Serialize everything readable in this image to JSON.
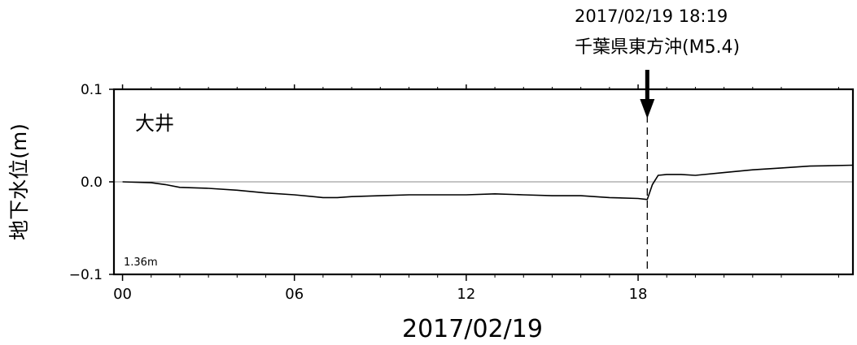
{
  "chart_data": {
    "type": "line",
    "ylabel": "地下水位(m)",
    "xlabel": "2017/02/19",
    "station_label": "大井",
    "baseline_note": "1.36m",
    "x_unit": "hours since 2017/02/19 00:00",
    "xlim": [
      -0.3,
      25.5
    ],
    "ylim": [
      -0.1,
      0.1
    ],
    "x_ticks": [
      {
        "value": 0,
        "label": "00"
      },
      {
        "value": 6,
        "label": "06"
      },
      {
        "value": 12,
        "label": "12"
      },
      {
        "value": 18,
        "label": "18"
      }
    ],
    "y_ticks": [
      {
        "value": 0.1,
        "label": "0.1"
      },
      {
        "value": 0.0,
        "label": "0.0"
      },
      {
        "value": -0.1,
        "label": "−0.1"
      }
    ],
    "series": [
      {
        "x": [
          0,
          1,
          1.5,
          2,
          3,
          4,
          5,
          6,
          7,
          7.5,
          8,
          9,
          10,
          11,
          12,
          13,
          14,
          15,
          16,
          17,
          18,
          18.3,
          18.32,
          18.5,
          18.7,
          19,
          19.5,
          20,
          21,
          22,
          23,
          24,
          25.5
        ],
        "values": [
          0.0,
          -0.001,
          -0.003,
          -0.006,
          -0.007,
          -0.009,
          -0.012,
          -0.014,
          -0.017,
          -0.017,
          -0.016,
          -0.015,
          -0.014,
          -0.014,
          -0.014,
          -0.013,
          -0.014,
          -0.015,
          -0.015,
          -0.017,
          -0.018,
          -0.019,
          -0.019,
          -0.003,
          0.007,
          0.008,
          0.008,
          0.007,
          0.01,
          0.013,
          0.015,
          0.017,
          0.018
        ]
      }
    ],
    "event": {
      "x": 18.32,
      "time_label": "2017/02/19 18:19",
      "name_label": "千葉県東方沖(M5.4)"
    }
  }
}
